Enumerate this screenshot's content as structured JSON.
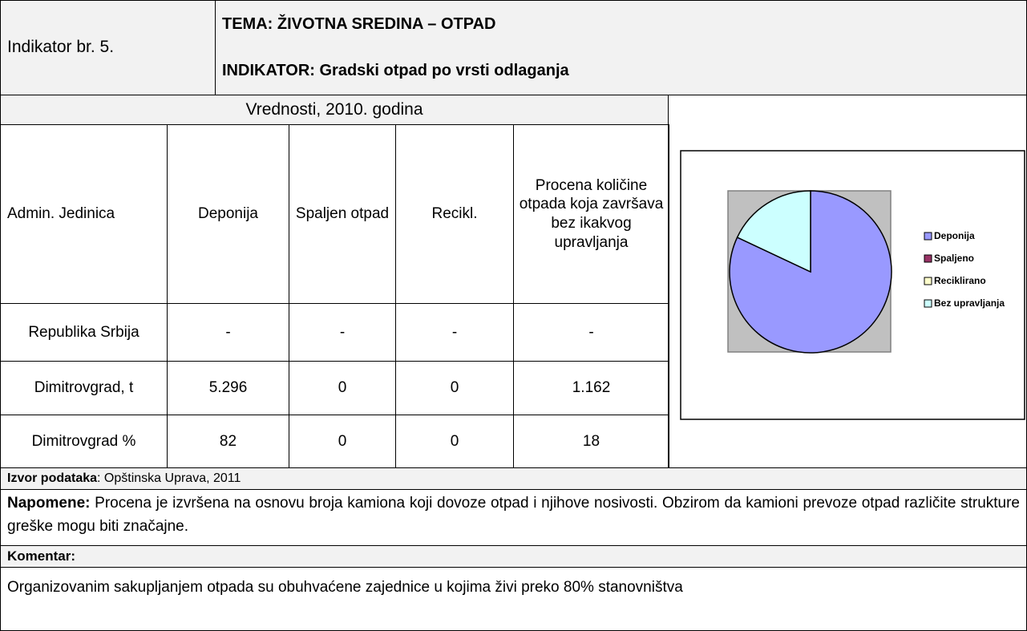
{
  "header": {
    "indicator_no": "Indikator br. 5.",
    "theme": "TEMA: ŽIVOTNA SREDINA – OTPAD",
    "indicator": "INDIKATOR: Gradski otpad po vrsti odlaganja"
  },
  "table": {
    "caption": "Vrednosti, 2010. godina",
    "columns": [
      "Admin. Jedinica",
      "Deponija",
      "Spaljen otpad",
      "Recikl.",
      "Procena količine otpada koja završava bez ikakvog upravljanja"
    ],
    "rows": [
      [
        "Republika Srbija",
        "-",
        "-",
        "-",
        "-"
      ],
      [
        "Dimitrovgrad, t",
        "5.296",
        "0",
        "0",
        "1.162"
      ],
      [
        "Dimitrovgrad %",
        "82",
        "0",
        "0",
        "18"
      ]
    ]
  },
  "chart": {
    "type": "pie",
    "categories": [
      "Deponija",
      "Spaljeno",
      "Reciklirano",
      "Bez upravljanja"
    ],
    "values": [
      82,
      0,
      0,
      18
    ],
    "colors": [
      "#9999ff",
      "#993366",
      "#ffffcc",
      "#ccffff"
    ]
  },
  "source": {
    "label": "Izvor podataka",
    "text": ": Opštinska Uprava, 2011"
  },
  "notes": {
    "label": "Napomene:",
    "text": " Procena je izvršena na osnovu broja kamiona koji dovoze otpad i njihove nosivosti. Obzirom da kamioni prevoze otpad različite strukture greške mogu biti značajne."
  },
  "comment": {
    "label": "Komentar:",
    "text": "Organizovanim sakupljanjem otpada su obuhvaćene zajednice u kojima živi preko 80% stanovništva"
  }
}
